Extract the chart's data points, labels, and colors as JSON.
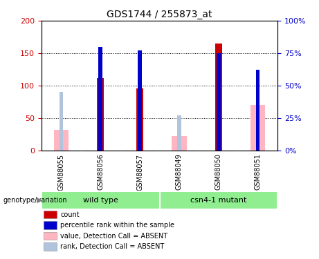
{
  "title": "GDS1744 / 255873_at",
  "samples": [
    "GSM88055",
    "GSM88056",
    "GSM88057",
    "GSM88049",
    "GSM88050",
    "GSM88051"
  ],
  "group_names": [
    "wild type",
    "csn4-1 mutant"
  ],
  "group_color": "#90EE90",
  "count_values": [
    0,
    112,
    96,
    0,
    165,
    0
  ],
  "percentile_values": [
    0,
    80,
    77,
    0,
    75,
    62
  ],
  "absent_value_values": [
    32,
    0,
    0,
    22,
    0,
    70
  ],
  "absent_rank_values": [
    45,
    0,
    0,
    27,
    0,
    0
  ],
  "count_color": "#CC0000",
  "percentile_color": "#0000CC",
  "absent_value_color": "#FFB6C1",
  "absent_rank_color": "#B0C4DE",
  "ylim_left": [
    0,
    200
  ],
  "ylim_right": [
    0,
    100
  ],
  "yticks_left": [
    0,
    50,
    100,
    150,
    200
  ],
  "yticks_right": [
    0,
    25,
    50,
    75,
    100
  ],
  "ytick_labels_left": [
    "0",
    "50",
    "100",
    "150",
    "200"
  ],
  "ytick_labels_right": [
    "0%",
    "25%",
    "50%",
    "75%",
    "100%"
  ],
  "left_axis_color": "#CC0000",
  "right_axis_color": "#0000CC",
  "grid_color": "black",
  "background_color": "#ffffff",
  "legend_items": [
    {
      "label": "count",
      "color": "#CC0000"
    },
    {
      "label": "percentile rank within the sample",
      "color": "#0000CC"
    },
    {
      "label": "value, Detection Call = ABSENT",
      "color": "#FFB6C1"
    },
    {
      "label": "rank, Detection Call = ABSENT",
      "color": "#B0C4DE"
    }
  ],
  "genotype_label": "genotype/variation",
  "sample_bg_color": "#D3D3D3"
}
